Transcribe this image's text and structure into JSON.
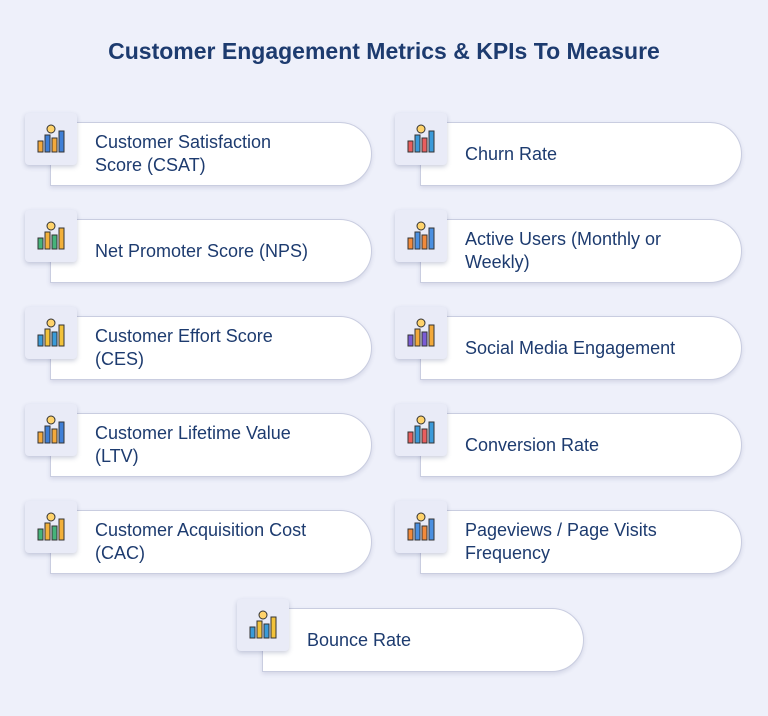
{
  "header": {
    "title": "Customer Engagement Metrics & KPIs To Measure"
  },
  "items": [
    {
      "lines": [
        "Customer Satisfaction",
        "Score (CSAT)"
      ]
    },
    {
      "lines": [
        "Churn Rate"
      ]
    },
    {
      "lines": [
        "Net Promoter Score (NPS)"
      ]
    },
    {
      "lines": [
        "Active Users (Monthly or",
        "Weekly)"
      ]
    },
    {
      "lines": [
        "Customer Effort Score",
        "(CES)"
      ]
    },
    {
      "lines": [
        "Social Media Engagement"
      ]
    },
    {
      "lines": [
        "Customer Lifetime Value",
        "(LTV)"
      ]
    },
    {
      "lines": [
        "Conversion Rate"
      ]
    },
    {
      "lines": [
        "Customer Acquisition Cost",
        "(CAC)"
      ]
    },
    {
      "lines": [
        "Pageviews / Page Visits",
        "Frequency"
      ]
    },
    {
      "lines": [
        "Bounce Rate"
      ]
    }
  ]
}
